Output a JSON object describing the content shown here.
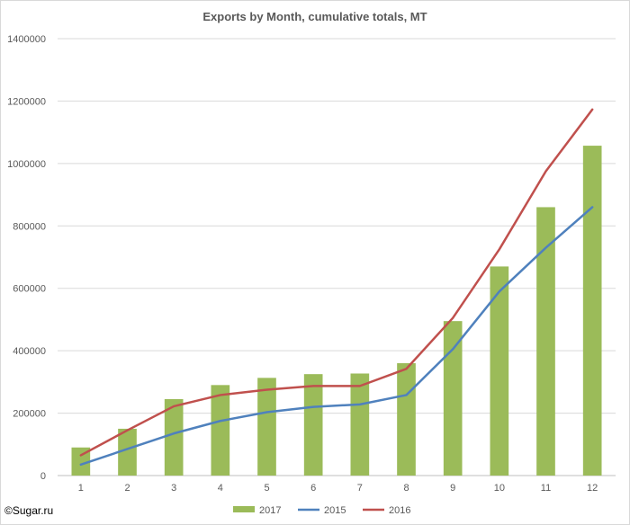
{
  "chart_data": {
    "type": "bar",
    "title": "Exports by Month, cumulative totals, MT",
    "xlabel": "",
    "ylabel": "",
    "categories": [
      "1",
      "2",
      "3",
      "4",
      "5",
      "6",
      "7",
      "8",
      "9",
      "10",
      "11",
      "12"
    ],
    "ylim": [
      0,
      1400000
    ],
    "yticks": [
      "0",
      "200000",
      "400000",
      "600000",
      "800000",
      "1000000",
      "1200000",
      "1400000"
    ],
    "grid": true,
    "legend_position": "bottom",
    "series": [
      {
        "name": "2017",
        "kind": "bar",
        "color": "#9bbb59",
        "values": [
          90000,
          150000,
          245000,
          290000,
          313000,
          325000,
          327000,
          360000,
          495000,
          670000,
          860000,
          1057000
        ]
      },
      {
        "name": "2015",
        "kind": "line",
        "color": "#4f81bd",
        "values": [
          35000,
          85000,
          135000,
          175000,
          203000,
          220000,
          228000,
          258000,
          405000,
          590000,
          730000,
          860000
        ]
      },
      {
        "name": "2016",
        "kind": "line",
        "color": "#c0504d",
        "values": [
          65000,
          145000,
          222000,
          258000,
          275000,
          287000,
          287000,
          342000,
          505000,
          725000,
          975000,
          1173000
        ]
      }
    ]
  },
  "footer": {
    "copyright": "©Sugar.ru"
  }
}
